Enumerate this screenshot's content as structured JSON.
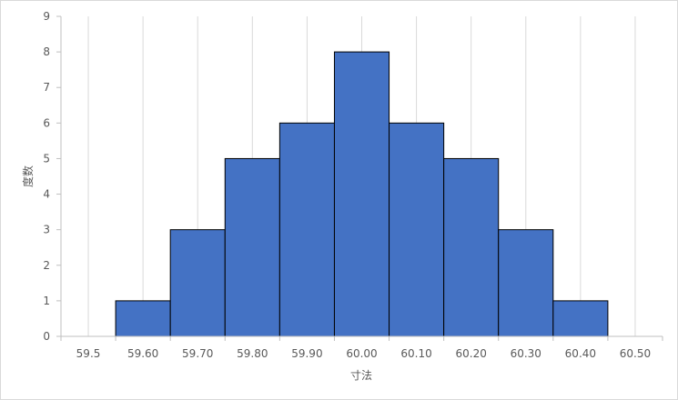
{
  "chart_data": {
    "type": "bar",
    "title": "",
    "xlabel": "寸法",
    "ylabel": "度数",
    "ylim": [
      0,
      9
    ],
    "y_ticks": [
      "0",
      "1",
      "2",
      "3",
      "4",
      "5",
      "6",
      "7",
      "8",
      "9"
    ],
    "categories": [
      "59.5",
      "59.60",
      "59.70",
      "59.80",
      "59.90",
      "60.00",
      "60.10",
      "60.20",
      "60.30",
      "60.40",
      "60.50"
    ],
    "values": [
      0,
      1,
      3,
      5,
      6,
      8,
      6,
      5,
      3,
      1,
      0
    ],
    "grid": "vertical",
    "legend": "none",
    "bar_color": "#4472c4",
    "bar_edge_color": "#000000",
    "grid_color": "#d9d9d9"
  }
}
